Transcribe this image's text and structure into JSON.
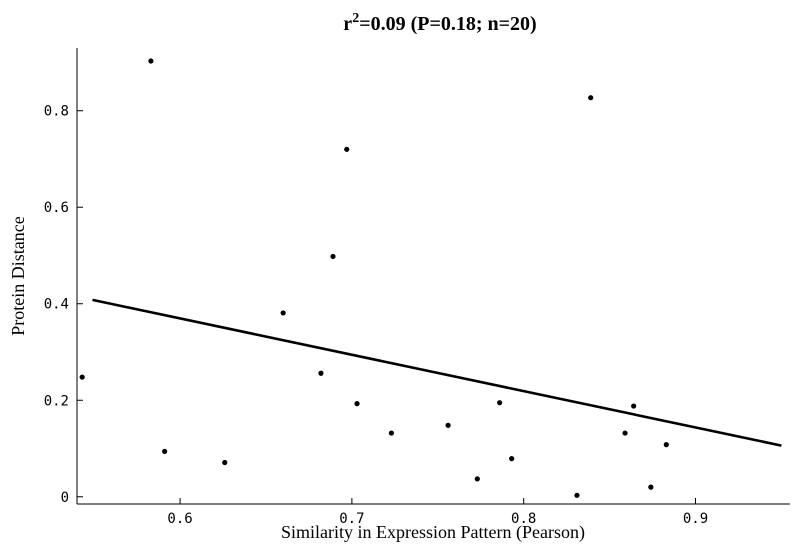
{
  "chart_data": {
    "type": "scatter",
    "title": {
      "prefix": "r",
      "superscript": "2",
      "suffix": "=0.09 (P=0.18; n=20)"
    },
    "xlabel": "Similarity in Expression Pattern (Pearson)",
    "ylabel": "Protein Distance",
    "xlim": [
      0.54,
      0.955
    ],
    "ylim": [
      -0.015,
      0.93
    ],
    "x_ticks": [
      0.6,
      0.7,
      0.8,
      0.9
    ],
    "x_tick_labels": [
      "0.6",
      "0.7",
      "0.8",
      "0.9"
    ],
    "y_ticks": [
      0,
      0.2,
      0.4,
      0.6,
      0.8
    ],
    "y_tick_labels": [
      "0",
      "0.2",
      "0.4",
      "0.6",
      "0.8"
    ],
    "grid": false,
    "legend": "none",
    "points": [
      {
        "x": 0.583,
        "y": 0.903
      },
      {
        "x": 0.839,
        "y": 0.827
      },
      {
        "x": 0.697,
        "y": 0.72
      },
      {
        "x": 0.689,
        "y": 0.498
      },
      {
        "x": 0.66,
        "y": 0.381
      },
      {
        "x": 0.682,
        "y": 0.256
      },
      {
        "x": 0.543,
        "y": 0.248
      },
      {
        "x": 0.703,
        "y": 0.193
      },
      {
        "x": 0.786,
        "y": 0.195
      },
      {
        "x": 0.864,
        "y": 0.188
      },
      {
        "x": 0.756,
        "y": 0.148
      },
      {
        "x": 0.723,
        "y": 0.132
      },
      {
        "x": 0.859,
        "y": 0.132
      },
      {
        "x": 0.883,
        "y": 0.108
      },
      {
        "x": 0.591,
        "y": 0.094
      },
      {
        "x": 0.793,
        "y": 0.079
      },
      {
        "x": 0.626,
        "y": 0.071
      },
      {
        "x": 0.773,
        "y": 0.037
      },
      {
        "x": 0.874,
        "y": 0.02
      },
      {
        "x": 0.831,
        "y": 0.003
      }
    ],
    "fit_line": {
      "x": [
        0.549,
        0.95
      ],
      "y": [
        0.408,
        0.106
      ]
    }
  }
}
